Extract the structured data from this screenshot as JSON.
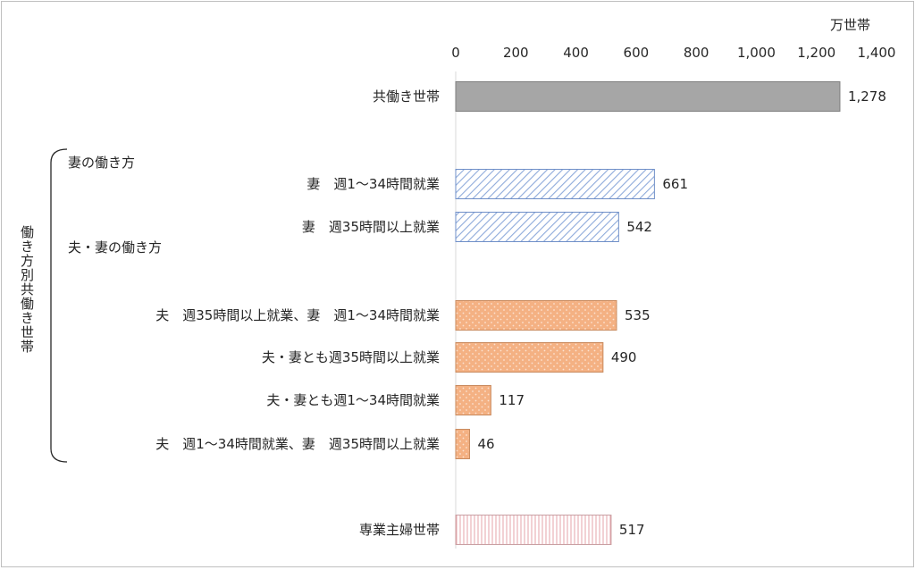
{
  "chart_data": {
    "type": "bar",
    "orientation": "horizontal",
    "unit": "万世帯",
    "xlim": [
      0,
      1400
    ],
    "ticks": [
      0,
      200,
      400,
      600,
      800,
      1000,
      1200,
      1400
    ],
    "tick_labels": [
      "0",
      "200",
      "400",
      "600",
      "800",
      "1,000",
      "1,200",
      "1,400"
    ],
    "vertical_group_label": "働き方別共働き世帯",
    "group_headers": [
      "妻の働き方",
      "夫・妻の働き方"
    ],
    "bars": [
      {
        "label": "共働き世帯",
        "value": 1278,
        "value_label": "1,278",
        "style": "gray"
      },
      {
        "label": "妻　週1～34時間就業",
        "value": 661,
        "value_label": "661",
        "style": "blue-hatch"
      },
      {
        "label": "妻　週35時間以上就業",
        "value": 542,
        "value_label": "542",
        "style": "blue-hatch"
      },
      {
        "label": "夫　週35時間以上就業、妻　週1～34時間就業",
        "value": 535,
        "value_label": "535",
        "style": "orange-dots"
      },
      {
        "label": "夫・妻とも週35時間以上就業",
        "value": 490,
        "value_label": "490",
        "style": "orange-dots"
      },
      {
        "label": "夫・妻とも週1～34時間就業",
        "value": 117,
        "value_label": "117",
        "style": "orange-dots"
      },
      {
        "label": "夫　週1～34時間就業、妻　週35時間以上就業",
        "value": 46,
        "value_label": "46",
        "style": "orange-dots"
      },
      {
        "label": "専業主婦世帯",
        "value": 517,
        "value_label": "517",
        "style": "pink-lines"
      }
    ],
    "colors": {
      "gray_fill": "#a6a6a6",
      "gray_stroke": "#7f7f7f",
      "blue_hatch": "#8eaadb",
      "blue_stroke": "#6f8fc8",
      "orange_fill": "#f4b183",
      "orange_dot": "#fbe2d0",
      "orange_stroke": "#c98b5f",
      "pink_line": "#e6a3a9",
      "pink_stroke": "#c9a0a3",
      "axis": "#d9d9d9"
    }
  }
}
